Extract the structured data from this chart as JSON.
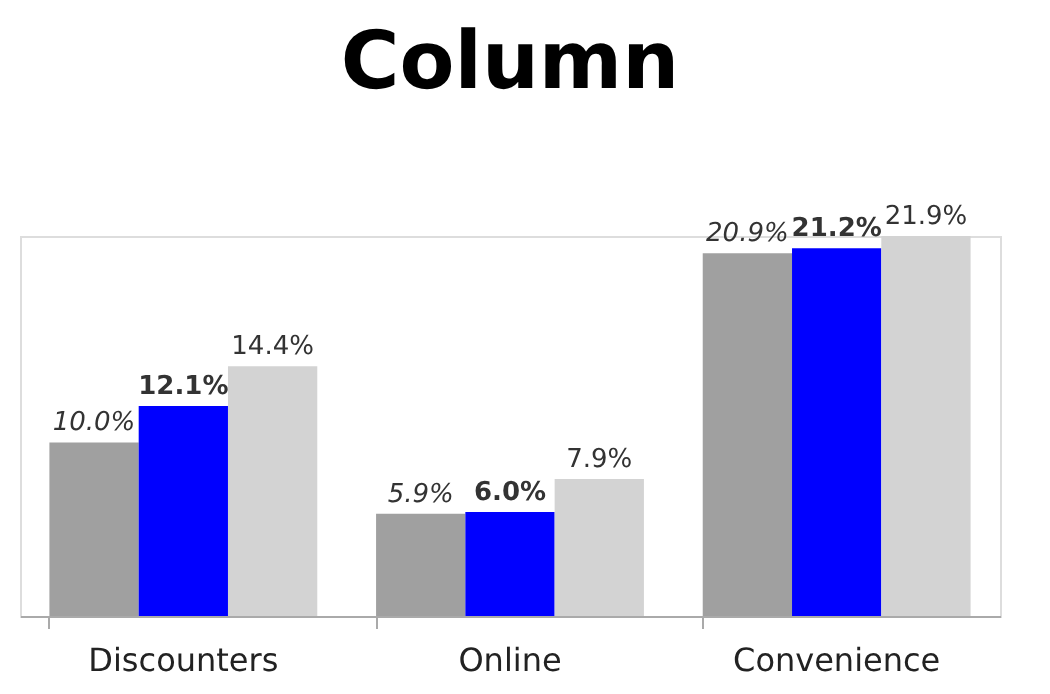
{
  "chart_data": {
    "type": "bar",
    "title": "Column",
    "categories": [
      "Discounters",
      "Online",
      "Convenience"
    ],
    "series": [
      {
        "color": "#a0a0a0",
        "values": [
          10.0,
          5.9,
          20.9
        ],
        "value_labels": [
          "10.0%",
          "5.9%",
          "20.9%"
        ]
      },
      {
        "color": "#0000ff",
        "values": [
          12.1,
          6.0,
          21.2
        ],
        "value_labels": [
          "12.1%",
          "6.0%",
          "21.2%"
        ]
      },
      {
        "color": "#d3d3d3",
        "values": [
          14.4,
          7.9,
          21.9
        ],
        "value_labels": [
          "14.4%",
          "7.9%",
          "21.9%"
        ]
      }
    ],
    "grid": false,
    "legend": false
  }
}
